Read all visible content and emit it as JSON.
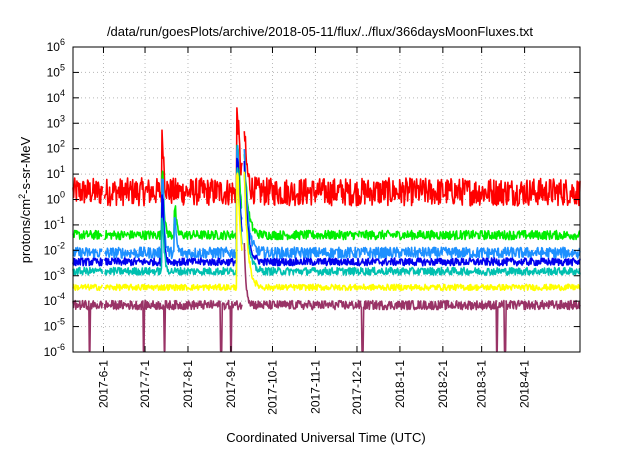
{
  "chart_data": {
    "type": "line",
    "title": "/data/run/goesPlots/archive/2018-05-11/flux/../flux/366daysMoonFluxes.txt",
    "xlabel": "Coordinated Universal Time (UTC)",
    "ylabel_parts": {
      "base": "protons/cm",
      "sup": "2",
      "rest": "-s-sr-MeV"
    },
    "x_range": [
      "2017-05-10",
      "2018-05-11"
    ],
    "x_ticks": [
      "2017-6-1",
      "2017-7-1",
      "2017-8-1",
      "2017-9-1",
      "2017-10-1",
      "2017-11-1",
      "2017-12-1",
      "2018-1-1",
      "2018-2-1",
      "2018-3-1",
      "2018-4-1"
    ],
    "y_scale": "log",
    "ylim": [
      1e-06,
      1000000.0
    ],
    "y_ticks": [
      {
        "base": "10",
        "exp": "-6"
      },
      {
        "base": "10",
        "exp": "-5"
      },
      {
        "base": "10",
        "exp": "-4"
      },
      {
        "base": "10",
        "exp": "-3"
      },
      {
        "base": "10",
        "exp": "-2"
      },
      {
        "base": "10",
        "exp": "-1"
      },
      {
        "base": "10",
        "exp": "0"
      },
      {
        "base": "10",
        "exp": "1"
      },
      {
        "base": "10",
        "exp": "2"
      },
      {
        "base": "10",
        "exp": "3"
      },
      {
        "base": "10",
        "exp": "4"
      },
      {
        "base": "10",
        "exp": "5"
      },
      {
        "base": "10",
        "exp": "6"
      }
    ],
    "grid": true,
    "series": [
      {
        "color": "#ff0000",
        "baseline": 2.0,
        "noise_decades": 0.55,
        "events": [
          [
            "2017-07-14",
            2.0,
            1.0
          ],
          [
            "2017-09-06",
            3.0,
            2.0
          ],
          [
            "2017-09-10",
            3.0,
            2.0
          ]
        ]
      },
      {
        "color": "#00ee00",
        "baseline": 0.04,
        "noise_decades": 0.18,
        "events": [
          [
            "2017-07-14",
            2.5,
            1.0
          ],
          [
            "2017-07-23",
            1.0,
            1.0
          ],
          [
            "2017-09-06",
            3.5,
            2.5
          ],
          [
            "2017-09-10",
            3.5,
            2.5
          ]
        ]
      },
      {
        "color": "#1e90ff",
        "baseline": 0.008,
        "noise_decades": 0.22,
        "events": [
          [
            "2017-07-14",
            3.0,
            1.0
          ],
          [
            "2017-07-23",
            1.2,
            1.0
          ],
          [
            "2017-09-06",
            4.0,
            2.5
          ],
          [
            "2017-09-10",
            4.5,
            2.5
          ]
        ]
      },
      {
        "color": "#0000ee",
        "baseline": 0.0035,
        "noise_decades": 0.15,
        "events": [
          [
            "2017-07-14",
            2.5,
            1.0
          ],
          [
            "2017-09-06",
            4.0,
            2.5
          ],
          [
            "2017-09-10",
            4.2,
            2.5
          ]
        ]
      },
      {
        "color": "#00c0b0",
        "baseline": 0.0015,
        "noise_decades": 0.15,
        "events": [
          [
            "2017-07-14",
            2.0,
            1.0
          ],
          [
            "2017-09-06",
            4.0,
            2.5
          ],
          [
            "2017-09-10",
            4.2,
            2.5
          ]
        ]
      },
      {
        "color": "#ffff00",
        "baseline": 0.00035,
        "noise_decades": 0.12,
        "events": [
          [
            "2017-09-06",
            4.5,
            2.5
          ],
          [
            "2017-09-10",
            5.0,
            2.5
          ]
        ]
      },
      {
        "color": "#993366",
        "baseline": 7e-05,
        "noise_decades": 0.18,
        "events": [
          [
            "2017-09-10",
            3.5,
            1.5
          ]
        ],
        "dropouts": [
          "2017-05-22",
          "2017-06-30",
          "2017-07-15",
          "2017-08-25",
          "2017-09-01",
          "2017-12-05",
          "2018-03-12",
          "2018-03-18"
        ]
      }
    ],
    "data_gaps": [
      "2017-06-01",
      "2017-09-10"
    ]
  }
}
